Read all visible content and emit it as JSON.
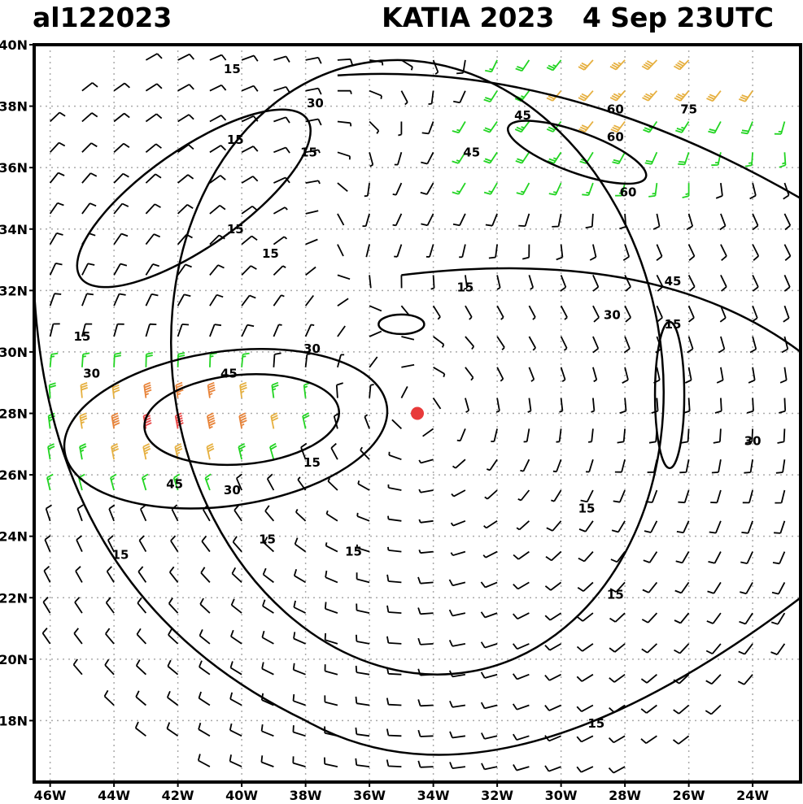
{
  "header": {
    "storm_id": "al122023",
    "storm_title": "KATIA 2023   4 Sep 23UTC"
  },
  "axes": {
    "lat_labels": [
      "40N",
      "38N",
      "36N",
      "34N",
      "32N",
      "30N",
      "28N",
      "26N",
      "24N",
      "22N",
      "20N",
      "18N"
    ],
    "lon_labels": [
      "46W",
      "44W",
      "42W",
      "40W",
      "38W",
      "36W",
      "34W",
      "32W",
      "30W",
      "28W",
      "26W",
      "24W"
    ]
  },
  "contour_levels": [
    "15",
    "30",
    "45",
    "60",
    "75"
  ],
  "contour_labels": [
    {
      "text": "15",
      "lon": -40.3,
      "lat": 39.2
    },
    {
      "text": "30",
      "lon": -37.7,
      "lat": 38.1
    },
    {
      "text": "15",
      "lon": -40.2,
      "lat": 36.9
    },
    {
      "text": "15",
      "lon": -37.9,
      "lat": 36.5
    },
    {
      "text": "15",
      "lon": -40.2,
      "lat": 34.0
    },
    {
      "text": "15",
      "lon": -39.1,
      "lat": 33.2
    },
    {
      "text": "15",
      "lon": -45.0,
      "lat": 30.5
    },
    {
      "text": "30",
      "lon": -44.7,
      "lat": 29.3
    },
    {
      "text": "30",
      "lon": -37.8,
      "lat": 30.1
    },
    {
      "text": "45",
      "lon": -40.4,
      "lat": 29.3
    },
    {
      "text": "15",
      "lon": -37.8,
      "lat": 26.4
    },
    {
      "text": "45",
      "lon": -42.1,
      "lat": 25.7
    },
    {
      "text": "30",
      "lon": -40.3,
      "lat": 25.5
    },
    {
      "text": "15",
      "lon": -39.2,
      "lat": 23.9
    },
    {
      "text": "15",
      "lon": -36.5,
      "lat": 23.5
    },
    {
      "text": "15",
      "lon": -43.8,
      "lat": 23.4
    },
    {
      "text": "45",
      "lon": -31.2,
      "lat": 37.7
    },
    {
      "text": "45",
      "lon": -32.8,
      "lat": 36.5
    },
    {
      "text": "60",
      "lon": -28.3,
      "lat": 37.9
    },
    {
      "text": "75",
      "lon": -26.0,
      "lat": 37.9
    },
    {
      "text": "60",
      "lon": -28.3,
      "lat": 37.0
    },
    {
      "text": "60",
      "lon": -27.9,
      "lat": 35.2
    },
    {
      "text": "15",
      "lon": -33.0,
      "lat": 32.1
    },
    {
      "text": "45",
      "lon": -26.5,
      "lat": 32.3
    },
    {
      "text": "30",
      "lon": -28.4,
      "lat": 31.2
    },
    {
      "text": "15",
      "lon": -26.5,
      "lat": 30.9
    },
    {
      "text": "30",
      "lon": -24.0,
      "lat": 27.1
    },
    {
      "text": "15",
      "lon": -29.2,
      "lat": 24.9
    },
    {
      "text": "15",
      "lon": -28.3,
      "lat": 22.1
    },
    {
      "text": "15",
      "lon": -28.9,
      "lat": 17.9
    }
  ],
  "storm_center": {
    "lon": -34.5,
    "lat": 28.0
  },
  "colors": {
    "speed_lt15": "#000000",
    "speed_15_30": "#22d422",
    "speed_30_45": "#e6b040",
    "speed_45_60": "#e8843a",
    "speed_60_75": "#e84848",
    "speed_ge75": "#b8b8b8",
    "center_marker": "#e83a3a",
    "grid": "#aaaaaa"
  },
  "chart_data": {
    "type": "wind-barb map",
    "lon_range": [
      -46.5,
      -22.5
    ],
    "lat_range": [
      16,
      40
    ],
    "grid": true,
    "barb_spacing_deg": 1
  }
}
